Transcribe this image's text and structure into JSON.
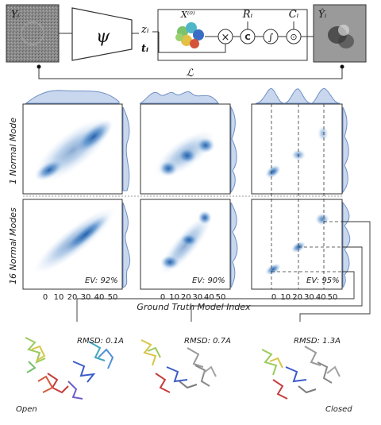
{
  "pipeline": {
    "input_label": "Yᵢ",
    "encoder_symbol": "ψ",
    "latent_z": "zᵢ",
    "latent_t": "tᵢ",
    "structure_label": "X⁽⁰⁾",
    "rotation_label": "Rᵢ",
    "ctf_label": "Cᵢ",
    "output_label": "Ŷᵢ",
    "loss_label": "ℒ",
    "op_times": "×",
    "op_c": "C",
    "op_int": "∫",
    "op_dot": "⊙"
  },
  "grid": {
    "row_labels": [
      "1 Normal Mode",
      "16 Normal Modes"
    ],
    "ev_labels": [
      "EV: 92%",
      "EV: 90%",
      "EV: 95%"
    ],
    "x_ticks": [
      "0",
      "10",
      "20",
      "30",
      "40",
      "50"
    ],
    "x_axis_label": "Ground Truth Model Index"
  },
  "structures": [
    {
      "rmsd": "RMSD: 0.1A",
      "state": "Open"
    },
    {
      "rmsd": "RMSD: 0.7A",
      "state": ""
    },
    {
      "rmsd": "RMSD: 1.3A",
      "state": "Closed"
    }
  ],
  "colors": {
    "density": "#1f5aa6",
    "marginal": "#6f8fc4",
    "marginal_fill": "#c9d7ee"
  }
}
